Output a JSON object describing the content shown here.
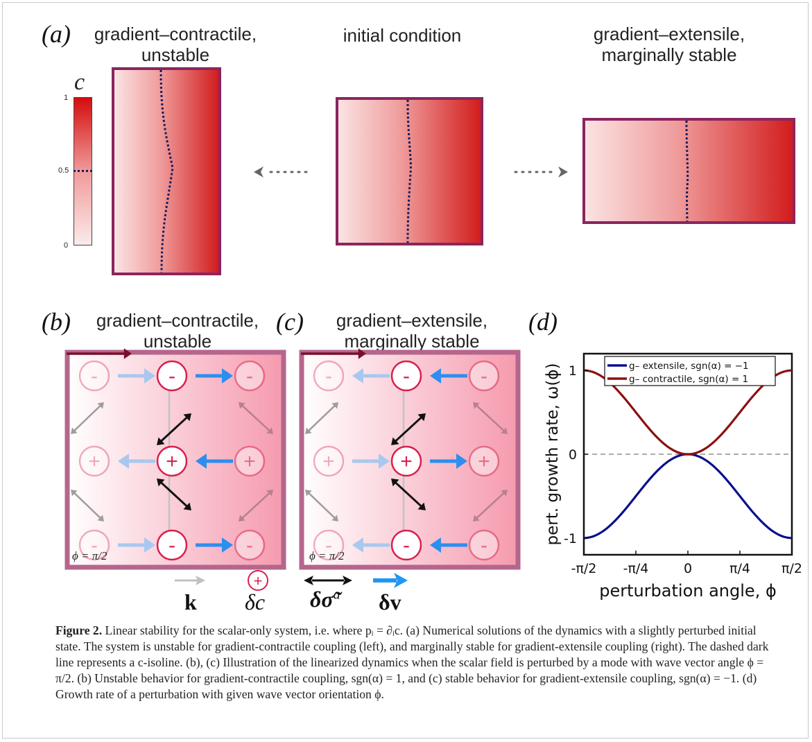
{
  "panel_a": {
    "letter": "(a)",
    "title_left": [
      "gradient–contractile,",
      "unstable"
    ],
    "title_mid": "initial condition",
    "title_right": [
      "gradient–extensile,",
      "marginally stable"
    ],
    "colorbar": {
      "symbol": "c",
      "tick_top": "1",
      "tick_mid": "0.5",
      "tick_bottom": "0"
    }
  },
  "panel_b": {
    "letter": "(b)",
    "title": [
      "gradient–contractile,",
      "unstable"
    ],
    "phi_label": "ϕ = π/2"
  },
  "panel_c": {
    "letter": "(c)",
    "title": [
      "gradient–extensile,",
      "marginally stable"
    ],
    "phi_label": "ϕ = π/2"
  },
  "panel_d": {
    "letter": "(d)"
  },
  "legend_bottom": {
    "k": "k",
    "dc": "δc",
    "dsigma": "δσ̃",
    "dsigma_sup": "a",
    "dv": "δv"
  },
  "chart_data": {
    "type": "line",
    "xlabel": "perturbation angle, ϕ",
    "ylabel": "pert. growth rate, ω(ϕ)",
    "xticks": [
      "-π/2",
      "-π/4",
      "0",
      "π/4",
      "π/2"
    ],
    "yticks": [
      "-1",
      "0",
      "1"
    ],
    "xlim": [
      -1.5708,
      1.5708
    ],
    "ylim": [
      -1.2,
      1.2
    ],
    "x": [
      -1.5708,
      -1.3744,
      -1.1781,
      -0.9817,
      -0.7854,
      -0.589,
      -0.3927,
      -0.1963,
      0,
      0.1963,
      0.3927,
      0.589,
      0.7854,
      0.9817,
      1.1781,
      1.3744,
      1.5708
    ],
    "series": [
      {
        "name": "g– extensile, sgn(α) = −1",
        "color": "#0a0f8c",
        "values": [
          -1,
          -0.962,
          -0.854,
          -0.691,
          -0.5,
          -0.309,
          -0.146,
          -0.038,
          0,
          -0.038,
          -0.146,
          -0.309,
          -0.5,
          -0.691,
          -0.854,
          -0.962,
          -1
        ]
      },
      {
        "name": "g– contractile, sgn(α) = 1",
        "color": "#8b1010",
        "values": [
          1,
          0.962,
          0.854,
          0.691,
          0.5,
          0.309,
          0.146,
          0.038,
          0,
          0.038,
          0.146,
          0.309,
          0.5,
          0.691,
          0.854,
          0.962,
          1
        ]
      }
    ],
    "zero_line": "dashed",
    "legend_position": "top"
  },
  "caption": {
    "label": "Figure 2.",
    "text": "Linear stability for the scalar-only system, i.e. where pᵢ = ∂ᵢc. (a) Numerical solutions of the dynamics with a slightly perturbed initial state. The system is unstable for gradient-contractile coupling (left), and marginally stable for gradient-extensile coupling (right). The dashed dark line represents a c-isoline. (b), (c) Illustration of the linearized dynamics when the scalar field is perturbed by a mode with wave vector angle ϕ = π/2. (b) Unstable behavior for gradient-contractile coupling, sgn(α) = 1, and (c) stable behavior for gradient-extensile coupling, sgn(α) = −1. (d) Growth rate of a perturbation with given wave vector orientation ϕ."
  }
}
